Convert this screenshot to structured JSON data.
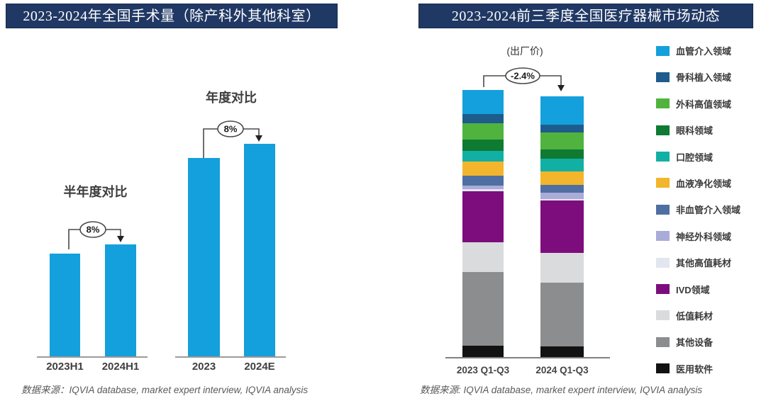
{
  "chart_data": [
    {
      "id": "national-surgery-volume",
      "type": "bar",
      "title": "2023-2024年全国手术量（除产科外其他科室）",
      "categories": [
        "2023H1",
        "2024H1",
        "2023",
        "2024E"
      ],
      "values": [
        145,
        158,
        280,
        300
      ],
      "value_note": "relative heights; no y-axis scale shown in figure",
      "bar_color": "#14a0dc",
      "group_labels": [
        "半年度对比",
        "年度对比"
      ],
      "growth_annotations": [
        "8%",
        "8%"
      ],
      "grid": "off",
      "source": "数据来源：IQVIA database, market expert interview, IQVIA analysis"
    },
    {
      "id": "med-device-market-dynamics",
      "type": "stacked-bar",
      "title": "2023-2024前三季度全国医疗器械市场动态",
      "price_basis": "(出厂价)",
      "categories": [
        "2023 Q1-Q3",
        "2024 Q1-Q3"
      ],
      "total_change_annotation": "-2.4%",
      "stack_order": "first series listed is the top segment of each bar",
      "legend_position": "right",
      "grid": "off",
      "series": [
        {
          "name": "血管介入领域",
          "color": "#14a0dc",
          "values": [
            34,
            40
          ]
        },
        {
          "name": "骨科植入领域",
          "color": "#1d5c8d",
          "values": [
            13,
            11
          ]
        },
        {
          "name": "外科高值领域",
          "color": "#50b33d",
          "values": [
            23,
            24
          ]
        },
        {
          "name": "眼科领域",
          "color": "#0f7a31",
          "values": [
            16,
            13
          ]
        },
        {
          "name": "口腔领域",
          "color": "#12b0a4",
          "values": [
            15,
            18
          ]
        },
        {
          "name": "血液净化领域",
          "color": "#f2b52c",
          "values": [
            20,
            19
          ]
        },
        {
          "name": "非血管介入领域",
          "color": "#4f6fa3",
          "values": [
            14,
            11
          ]
        },
        {
          "name": "神经外科领域",
          "color": "#a9abd8",
          "values": [
            5,
            9
          ]
        },
        {
          "name": "其他高值耗材",
          "color": "#e2e6ee",
          "values": [
            3,
            2
          ]
        },
        {
          "name": "IVD领域",
          "color": "#7d0d7d",
          "values": [
            72,
            74
          ]
        },
        {
          "name": "低值耗材",
          "color": "#d9dbdd",
          "values": [
            42,
            42
          ]
        },
        {
          "name": "其他设备",
          "color": "#8b8d8f",
          "values": [
            104,
            90
          ]
        },
        {
          "name": "医用软件",
          "color": "#121212",
          "values": [
            16,
            15
          ]
        }
      ],
      "totals": [
        377,
        368
      ],
      "source": "数据来源: IQVIA database, market expert interview, IQVIA analysis"
    }
  ]
}
